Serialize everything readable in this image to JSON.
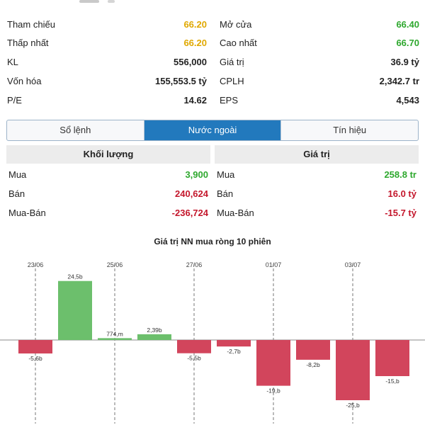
{
  "stats": {
    "left": [
      {
        "label": "Tham chiếu",
        "value": "66.20",
        "color": "yellow"
      },
      {
        "label": "Thấp nhất",
        "value": "66.20",
        "color": "yellow"
      },
      {
        "label": "KL",
        "value": "556,000",
        "color": "dark"
      },
      {
        "label": "Vốn hóa",
        "value": "155,553.5 tỷ",
        "color": "dark"
      },
      {
        "label": "P/E",
        "value": "14.62",
        "color": "dark"
      }
    ],
    "right": [
      {
        "label": "Mở cửa",
        "value": "66.40",
        "color": "green"
      },
      {
        "label": "Cao nhất",
        "value": "66.70",
        "color": "green"
      },
      {
        "label": "Giá trị",
        "value": "36.9 tỷ",
        "color": "dark"
      },
      {
        "label": "CPLH",
        "value": "2,342.7 tr",
        "color": "dark"
      },
      {
        "label": "EPS",
        "value": "4,543",
        "color": "dark"
      }
    ]
  },
  "tabs": [
    {
      "label": "Sổ lệnh",
      "active": false
    },
    {
      "label": "Nước ngoài",
      "active": true
    },
    {
      "label": "Tín hiệu",
      "active": false
    }
  ],
  "volume_panel": {
    "header": "Khối lượng",
    "rows": [
      {
        "label": "Mua",
        "value": "3,900",
        "color": "green"
      },
      {
        "label": "Bán",
        "value": "240,624",
        "color": "red"
      },
      {
        "label": "Mua-Bán",
        "value": "-236,724",
        "color": "red"
      }
    ]
  },
  "value_panel": {
    "header": "Giá trị",
    "rows": [
      {
        "label": "Mua",
        "value": "258.8 tr",
        "color": "green"
      },
      {
        "label": "Bán",
        "value": "16.0 tỷ",
        "color": "red"
      },
      {
        "label": "Mua-Bán",
        "value": "-15.7 tỷ",
        "color": "red"
      }
    ]
  },
  "chart_title": "Giá trị NN mua ròng 10 phiên",
  "colors": {
    "positive": "#6cbf6c",
    "negative": "#d2455c",
    "yellow": "#e0a800",
    "green": "#2ea82e",
    "red": "#c4172c",
    "accent": "#2279bd"
  },
  "chart_data": {
    "type": "bar",
    "title": "Giá trị NN mua ròng 10 phiên",
    "date_labels": [
      "23/06",
      "25/06",
      "27/06",
      "01/07",
      "03/07"
    ],
    "values_b": [
      -5.6,
      24.5,
      0.774,
      2.39,
      -5.5,
      -2.7,
      -19,
      -8.2,
      -25,
      -15
    ],
    "labels": [
      "-5,6b",
      "24,5b",
      "774,m",
      "2,39b",
      "-5,5b",
      "-2,7b",
      "-19,b",
      "-8,2b",
      "-25,b",
      "-15,b"
    ],
    "xlabel": "",
    "ylabel": "",
    "ylim": [
      -25,
      25
    ]
  }
}
